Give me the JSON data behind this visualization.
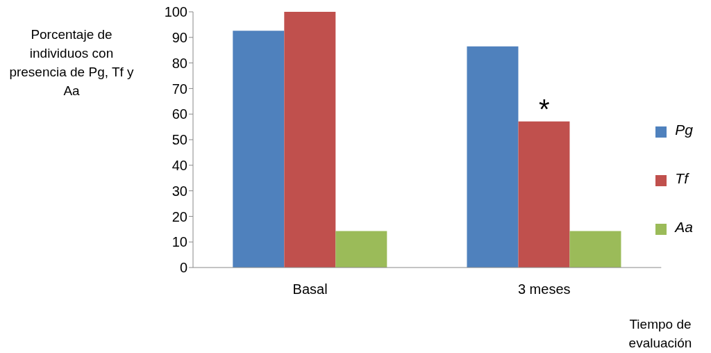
{
  "chart_data": {
    "type": "bar",
    "ylabel": "Porcentaje de individuos con presencia de Pg, Tf y Aa",
    "xlabel": "Tiempo de evaluación",
    "categories": [
      "Basal",
      "3 meses"
    ],
    "series": [
      {
        "name": "Pg",
        "color": "#4f81bd",
        "values": [
          92.6,
          86.5
        ]
      },
      {
        "name": "Tf",
        "color": "#c0504d",
        "values": [
          100,
          57.1
        ]
      },
      {
        "name": "Aa",
        "color": "#9bbb59",
        "values": [
          14.3,
          14.3
        ]
      }
    ],
    "ylim": [
      0,
      100
    ],
    "yticks": [
      0,
      10,
      20,
      30,
      40,
      50,
      60,
      70,
      80,
      90,
      100
    ],
    "grid": false,
    "legend": "right",
    "annotations": [
      {
        "text": "*",
        "x": "3 meses",
        "y": 57.1
      }
    ]
  }
}
